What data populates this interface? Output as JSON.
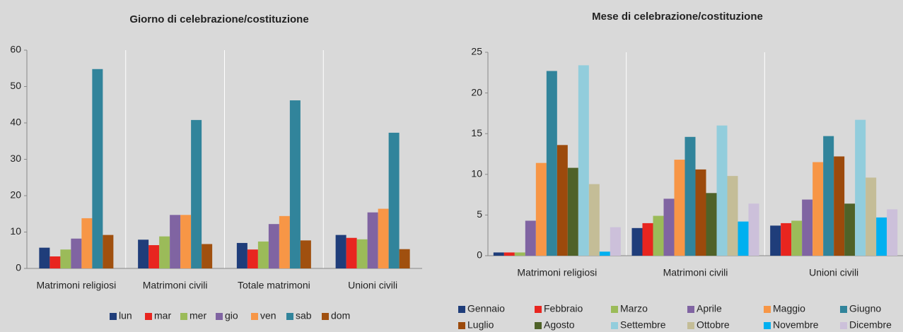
{
  "chart_data": [
    {
      "type": "bar",
      "title": "Giorno di celebrazione/costituzione",
      "categories": [
        "Matrimoni religiosi",
        "Matrimoni civili",
        "Totale matrimoni",
        "Unioni civili"
      ],
      "series": [
        {
          "name": "lun",
          "color": "#1f3d7a",
          "values": [
            5.7,
            7.9,
            7.0,
            9.2
          ]
        },
        {
          "name": "mar",
          "color": "#e8251f",
          "values": [
            3.3,
            6.4,
            5.2,
            8.4
          ]
        },
        {
          "name": "mer",
          "color": "#9bbb59",
          "values": [
            5.2,
            8.8,
            7.4,
            8.0
          ]
        },
        {
          "name": "gio",
          "color": "#8064a2",
          "values": [
            8.2,
            14.7,
            12.2,
            15.4
          ]
        },
        {
          "name": "ven",
          "color": "#f79646",
          "values": [
            13.8,
            14.7,
            14.4,
            16.4
          ]
        },
        {
          "name": "sab",
          "color": "#31849b",
          "values": [
            54.8,
            40.8,
            46.2,
            37.3
          ]
        },
        {
          "name": "dom",
          "color": "#a0500f",
          "values": [
            9.2,
            6.7,
            7.7,
            5.3
          ]
        }
      ],
      "ylim": [
        0,
        60
      ],
      "yticks": [
        0,
        10,
        20,
        30,
        40,
        50,
        60
      ],
      "grid": false
    },
    {
      "type": "bar",
      "title": "Mese di celebrazione/costituzione",
      "categories": [
        "Matrimoni religiosi",
        "Matrimoni civili",
        "Unioni civili"
      ],
      "series": [
        {
          "name": "Gennaio",
          "color": "#1f3d7a",
          "values": [
            0.4,
            3.4,
            3.7
          ]
        },
        {
          "name": "Febbraio",
          "color": "#e8251f",
          "values": [
            0.4,
            4.0,
            4.0
          ]
        },
        {
          "name": "Marzo",
          "color": "#9bbb59",
          "values": [
            0.4,
            4.9,
            4.3
          ]
        },
        {
          "name": "Aprile",
          "color": "#8064a2",
          "values": [
            4.3,
            7.0,
            6.9
          ]
        },
        {
          "name": "Maggio",
          "color": "#f79646",
          "values": [
            11.4,
            11.8,
            11.5
          ]
        },
        {
          "name": "Giugno",
          "color": "#31849b",
          "values": [
            22.7,
            14.6,
            14.7
          ]
        },
        {
          "name": "Luglio",
          "color": "#9c4a0c",
          "values": [
            13.6,
            10.6,
            12.2
          ]
        },
        {
          "name": "Agosto",
          "color": "#4f6228",
          "values": [
            10.8,
            7.7,
            6.4
          ]
        },
        {
          "name": "Settembre",
          "color": "#92cddc",
          "values": [
            23.4,
            16.0,
            16.7
          ]
        },
        {
          "name": "Ottobre",
          "color": "#c4bd97",
          "values": [
            8.8,
            9.8,
            9.6
          ]
        },
        {
          "name": "Novembre",
          "color": "#00b0f0",
          "values": [
            0.5,
            4.2,
            4.7
          ]
        },
        {
          "name": "Dicembre",
          "color": "#ccc0da",
          "values": [
            3.5,
            6.4,
            5.7
          ]
        }
      ],
      "ylim": [
        0,
        25
      ],
      "yticks": [
        0,
        5,
        10,
        15,
        20,
        25
      ],
      "grid": false
    }
  ]
}
